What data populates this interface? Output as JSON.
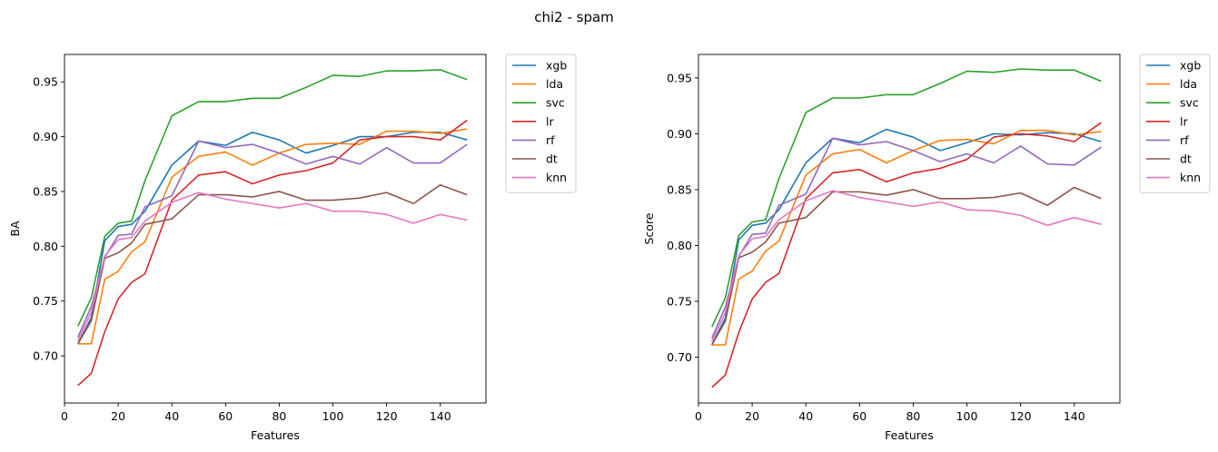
{
  "figure": {
    "title": "chi2 - spam"
  },
  "colors": {
    "xgb": "#1f77b4",
    "lda": "#ff7f0e",
    "svc": "#2ca02c",
    "lr": "#d62728",
    "rf": "#9467bd",
    "dt": "#8c564b",
    "knn": "#e377c2"
  },
  "chart_data": [
    {
      "type": "line",
      "title": "",
      "xlabel": "Features",
      "ylabel": "BA",
      "xlim": [
        0,
        157
      ],
      "ylim": [
        0.657,
        0.975
      ],
      "xticks": [
        0,
        20,
        40,
        60,
        80,
        100,
        120,
        140
      ],
      "yticks": [
        0.7,
        0.75,
        0.8,
        0.85,
        0.9,
        0.95
      ],
      "ytick_labels": [
        "0.70",
        "0.75",
        "0.80",
        "0.85",
        "0.90",
        "0.95"
      ],
      "legend": "outside-upper-right",
      "x": [
        5,
        10,
        15,
        20,
        25,
        30,
        40,
        50,
        60,
        70,
        80,
        90,
        100,
        110,
        120,
        130,
        140,
        150
      ],
      "series": [
        {
          "name": "xgb",
          "values": [
            0.711,
            0.735,
            0.805,
            0.818,
            0.82,
            0.832,
            0.874,
            0.896,
            0.892,
            0.904,
            0.897,
            0.885,
            0.892,
            0.9,
            0.9,
            0.904,
            0.904,
            0.897
          ]
        },
        {
          "name": "lda",
          "values": [
            0.711,
            0.711,
            0.77,
            0.777,
            0.795,
            0.804,
            0.863,
            0.882,
            0.886,
            0.874,
            0.885,
            0.893,
            0.894,
            0.893,
            0.905,
            0.905,
            0.903,
            0.907
          ]
        },
        {
          "name": "svc",
          "values": [
            0.727,
            0.753,
            0.809,
            0.821,
            0.823,
            0.86,
            0.919,
            0.932,
            0.932,
            0.935,
            0.935,
            0.945,
            0.956,
            0.955,
            0.96,
            0.96,
            0.961,
            0.952
          ]
        },
        {
          "name": "lr",
          "values": [
            0.673,
            0.684,
            0.722,
            0.752,
            0.767,
            0.775,
            0.842,
            0.865,
            0.868,
            0.857,
            0.865,
            0.869,
            0.876,
            0.897,
            0.9,
            0.9,
            0.897,
            0.915
          ]
        },
        {
          "name": "rf",
          "values": [
            0.717,
            0.745,
            0.79,
            0.81,
            0.811,
            0.836,
            0.846,
            0.896,
            0.89,
            0.893,
            0.885,
            0.875,
            0.882,
            0.875,
            0.89,
            0.876,
            0.876,
            0.893
          ]
        },
        {
          "name": "dt",
          "values": [
            0.711,
            0.732,
            0.789,
            0.794,
            0.803,
            0.82,
            0.825,
            0.847,
            0.847,
            0.845,
            0.85,
            0.842,
            0.842,
            0.844,
            0.849,
            0.839,
            0.856,
            0.847
          ]
        },
        {
          "name": "knn",
          "values": [
            0.714,
            0.74,
            0.791,
            0.806,
            0.808,
            0.823,
            0.84,
            0.849,
            0.843,
            0.839,
            0.835,
            0.839,
            0.832,
            0.832,
            0.829,
            0.821,
            0.829,
            0.824
          ]
        }
      ]
    },
    {
      "type": "line",
      "title": "",
      "xlabel": "Features",
      "ylabel": "Score",
      "xlim": [
        0,
        157
      ],
      "ylim": [
        0.659,
        0.971
      ],
      "xticks": [
        0,
        20,
        40,
        60,
        80,
        100,
        120,
        140
      ],
      "yticks": [
        0.7,
        0.75,
        0.8,
        0.85,
        0.9,
        0.95
      ],
      "ytick_labels": [
        "0.70",
        "0.75",
        "0.80",
        "0.85",
        "0.90",
        "0.95"
      ],
      "legend": "outside-upper-right",
      "x": [
        5,
        10,
        15,
        20,
        25,
        30,
        40,
        50,
        60,
        70,
        80,
        90,
        100,
        110,
        120,
        130,
        140,
        150
      ],
      "series": [
        {
          "name": "xgb",
          "values": [
            0.711,
            0.735,
            0.805,
            0.818,
            0.82,
            0.832,
            0.874,
            0.896,
            0.892,
            0.904,
            0.897,
            0.885,
            0.892,
            0.9,
            0.899,
            0.901,
            0.9,
            0.893
          ]
        },
        {
          "name": "lda",
          "values": [
            0.711,
            0.711,
            0.77,
            0.777,
            0.795,
            0.804,
            0.863,
            0.882,
            0.886,
            0.874,
            0.885,
            0.894,
            0.895,
            0.891,
            0.903,
            0.903,
            0.899,
            0.902
          ]
        },
        {
          "name": "svc",
          "values": [
            0.727,
            0.753,
            0.809,
            0.821,
            0.823,
            0.86,
            0.919,
            0.932,
            0.932,
            0.935,
            0.935,
            0.945,
            0.956,
            0.955,
            0.958,
            0.957,
            0.957,
            0.947
          ]
        },
        {
          "name": "lr",
          "values": [
            0.673,
            0.684,
            0.722,
            0.752,
            0.767,
            0.775,
            0.842,
            0.865,
            0.868,
            0.857,
            0.865,
            0.869,
            0.877,
            0.897,
            0.9,
            0.898,
            0.893,
            0.91
          ]
        },
        {
          "name": "rf",
          "values": [
            0.717,
            0.745,
            0.79,
            0.81,
            0.811,
            0.836,
            0.846,
            0.896,
            0.89,
            0.893,
            0.885,
            0.875,
            0.882,
            0.874,
            0.889,
            0.873,
            0.872,
            0.888
          ]
        },
        {
          "name": "dt",
          "values": [
            0.711,
            0.732,
            0.789,
            0.794,
            0.803,
            0.82,
            0.825,
            0.848,
            0.848,
            0.845,
            0.85,
            0.842,
            0.842,
            0.843,
            0.847,
            0.836,
            0.852,
            0.842
          ]
        },
        {
          "name": "knn",
          "values": [
            0.714,
            0.74,
            0.791,
            0.806,
            0.808,
            0.823,
            0.84,
            0.849,
            0.843,
            0.839,
            0.835,
            0.839,
            0.832,
            0.831,
            0.827,
            0.818,
            0.825,
            0.819
          ]
        }
      ]
    }
  ]
}
